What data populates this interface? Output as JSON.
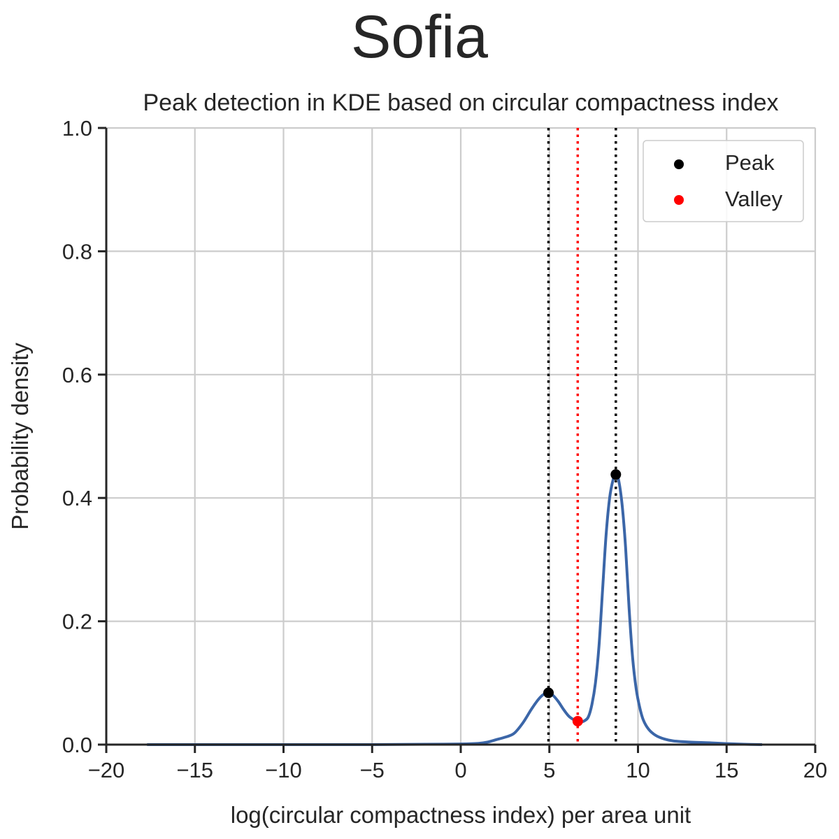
{
  "figure": {
    "suptitle": "Sofia"
  },
  "chart_data": {
    "type": "line",
    "title": "Peak detection in KDE based on circular compactness index",
    "xlabel": "log(circular compactness index) per area unit",
    "ylabel": "Probability density",
    "xlim": [
      -20,
      20
    ],
    "ylim": [
      0,
      1.0
    ],
    "x_ticks": [
      -20,
      -15,
      -10,
      -5,
      0,
      5,
      10,
      15,
      20
    ],
    "x_tick_labels": [
      "−20",
      "−15",
      "−10",
      "−5",
      "0",
      "5",
      "10",
      "15",
      "20"
    ],
    "y_ticks": [
      0,
      0.2,
      0.4,
      0.6,
      0.8,
      1.0
    ],
    "y_tick_labels": [
      "0.0",
      "0.2",
      "0.4",
      "0.6",
      "0.8",
      "1.0"
    ],
    "grid": true,
    "legend_position": "top-right",
    "series": [
      {
        "kind": "kde",
        "color": "#3b66a8",
        "x": [
          -17.7,
          -15,
          -10,
          -5,
          -2,
          0,
          1,
          1.5,
          2,
          2.5,
          3,
          3.5,
          4,
          4.4,
          4.7,
          4.95,
          5.2,
          5.5,
          5.8,
          6.1,
          6.4,
          6.6,
          6.8,
          7.0,
          7.2,
          7.4,
          7.6,
          7.8,
          8.0,
          8.2,
          8.4,
          8.6,
          8.75,
          8.9,
          9.1,
          9.3,
          9.5,
          9.7,
          9.9,
          10.1,
          10.3,
          10.6,
          11.0,
          11.5,
          12,
          13,
          14,
          15,
          16,
          17
        ],
        "y": [
          0.0,
          0.0,
          0.0,
          0.0,
          0.0005,
          0.001,
          0.002,
          0.004,
          0.008,
          0.012,
          0.018,
          0.035,
          0.058,
          0.074,
          0.082,
          0.084,
          0.08,
          0.07,
          0.057,
          0.046,
          0.04,
          0.038,
          0.037,
          0.039,
          0.045,
          0.065,
          0.1,
          0.16,
          0.25,
          0.34,
          0.4,
          0.43,
          0.438,
          0.43,
          0.39,
          0.32,
          0.22,
          0.14,
          0.09,
          0.06,
          0.04,
          0.025,
          0.015,
          0.009,
          0.006,
          0.004,
          0.003,
          0.0015,
          0.0005,
          0.0
        ]
      }
    ],
    "peaks": {
      "name": "Peak",
      "color": "#000000",
      "points": [
        {
          "x": 4.95,
          "y": 0.084
        },
        {
          "x": 8.75,
          "y": 0.438
        }
      ]
    },
    "valleys": {
      "name": "Valley",
      "color": "#ff0000",
      "points": [
        {
          "x": 6.6,
          "y": 0.038
        }
      ]
    },
    "vertical_lines": [
      {
        "x": 4.95,
        "color": "#000000",
        "style": "dotted"
      },
      {
        "x": 6.6,
        "color": "#ff0000",
        "style": "dotted"
      },
      {
        "x": 8.75,
        "color": "#000000",
        "style": "dotted"
      }
    ]
  }
}
